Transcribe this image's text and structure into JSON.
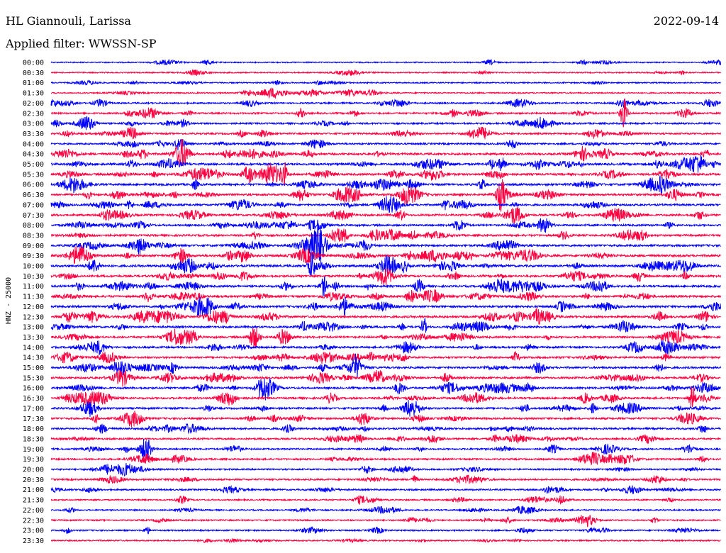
{
  "header": {
    "station": "HL Giannouli, Larissa",
    "date": "2022-09-14",
    "filter": "Applied filter: WWSSN-SP"
  },
  "chart_data": {
    "type": "line",
    "title": "HL Giannouli, Larissa",
    "ylabel": "HNZ - 25000",
    "colors": [
      "#0000ff",
      "#ff0040"
    ],
    "rows": [
      "00:00",
      "00:30",
      "01:00",
      "01:30",
      "02:00",
      "02:30",
      "03:00",
      "03:30",
      "04:00",
      "04:30",
      "05:00",
      "05:30",
      "06:00",
      "06:30",
      "07:00",
      "07:30",
      "08:00",
      "08:30",
      "09:00",
      "09:30",
      "10:00",
      "10:30",
      "11:00",
      "11:30",
      "12:00",
      "12:30",
      "13:00",
      "13:30",
      "14:00",
      "14:30",
      "15:00",
      "15:30",
      "16:00",
      "16:30",
      "17:00",
      "17:30",
      "18:00",
      "18:30",
      "19:00",
      "19:30",
      "20:00",
      "20:30",
      "21:00",
      "21:30",
      "22:00",
      "22:30",
      "23:00",
      "23:30"
    ],
    "activity": [
      0.2,
      0.2,
      0.25,
      0.3,
      0.5,
      0.6,
      0.6,
      0.6,
      0.6,
      0.9,
      1.0,
      0.9,
      0.9,
      0.9,
      0.8,
      0.8,
      0.8,
      0.8,
      0.9,
      1.0,
      1.0,
      0.9,
      0.9,
      0.9,
      0.9,
      0.9,
      0.8,
      0.8,
      0.8,
      0.8,
      0.8,
      0.8,
      0.8,
      0.8,
      0.8,
      0.7,
      0.7,
      0.6,
      0.6,
      0.6,
      0.5,
      0.5,
      0.5,
      0.4,
      0.4,
      0.4,
      0.35,
      0.3
    ],
    "grid": false
  }
}
